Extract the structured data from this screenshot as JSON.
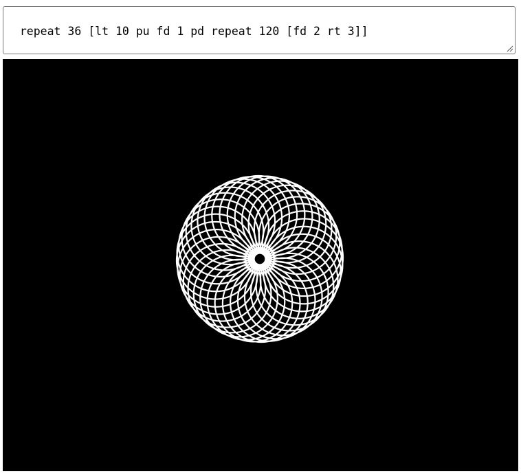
{
  "editor": {
    "value": "repeat 36 [lt 10 pu fd 1 pd repeat 120 [fd 2 rt 3]]"
  },
  "canvas": {
    "background": "#000000",
    "pen_color": "#ffffff"
  }
}
